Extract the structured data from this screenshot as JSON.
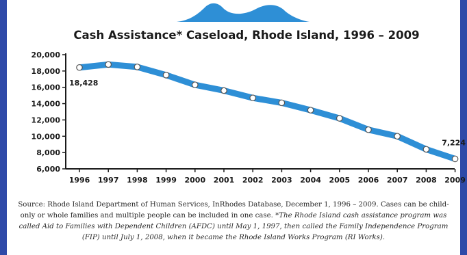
{
  "chart_data": {
    "type": "line",
    "title": "Cash Assistance* Caseload, Rhode Island, 1996 – 2009",
    "x": [
      "1996",
      "1997",
      "1998",
      "1999",
      "2000",
      "2001",
      "2002",
      "2003",
      "2004",
      "2005",
      "2006",
      "2007",
      "2008",
      "2009"
    ],
    "series": [
      {
        "values": [
          18428,
          18800,
          18500,
          17500,
          16300,
          15600,
          14700,
          14100,
          13200,
          12200,
          10800,
          10000,
          8400,
          7224
        ]
      }
    ],
    "ylim": [
      6000,
      20000
    ],
    "y_ticks": [
      "20,000",
      "18,000",
      "16,000",
      "14,000",
      "12,000",
      "10,000",
      "8,000",
      "6,000"
    ],
    "y_tick_values": [
      20000,
      18000,
      16000,
      14000,
      12000,
      10000,
      8000,
      6000
    ],
    "point_labels": [
      {
        "index": 0,
        "text": "18,428"
      },
      {
        "index": 13,
        "text": "7,224"
      }
    ],
    "grid": false,
    "legend": "none",
    "colors": {
      "line": "#2e8fd6",
      "marker_fill": "#ffffff",
      "marker_stroke": "#555555",
      "axis": "#1a1a1a",
      "frame": "#2f4aa8",
      "logo": "#2e8fd6"
    }
  },
  "source": {
    "line1": "Source: Rhode Island Department of Human Services, InRhodes Database, December 1, 1996 – 2009. Cases can be child-only or whole families and multiple people can be included in one case.",
    "note": "*The Rhode Island cash assistance program was called Aid to Families with Dependent Children (AFDC) until May 1, 1997, then called the Family Independence Program (FIP) until July 1, 2008, when it became the Rhode Island Works Program (RI Works)."
  },
  "logo": {
    "icon": "wave-logo-icon"
  }
}
